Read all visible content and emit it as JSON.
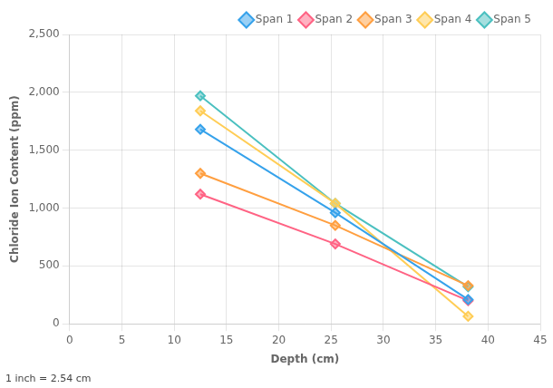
{
  "chart_data": {
    "type": "line",
    "xlabel": "Depth (cm)",
    "ylabel": "Chloride Ion Content (ppm)",
    "x": [
      12.5,
      25.4,
      38.1
    ],
    "series": [
      {
        "name": "Span 1",
        "values": [
          1680,
          960,
          210
        ]
      },
      {
        "name": "Span 2",
        "values": [
          1120,
          690,
          200
        ]
      },
      {
        "name": "Span 3",
        "values": [
          1300,
          850,
          330
        ]
      },
      {
        "name": "Span 4",
        "values": [
          1840,
          1040,
          65
        ]
      },
      {
        "name": "Span 5",
        "values": [
          1970,
          1040,
          320
        ]
      }
    ],
    "xlim": [
      0,
      45
    ],
    "xticks": [
      0,
      5,
      10,
      15,
      20,
      25,
      30,
      35,
      40,
      45
    ],
    "ylim": [
      0,
      2500
    ],
    "yticks": [
      0,
      500,
      1000,
      1500,
      2000,
      2500
    ],
    "grid": true,
    "legend": "upper right",
    "marker": "diamond",
    "annotations": [
      "1 inch = 2.54 cm"
    ]
  }
}
